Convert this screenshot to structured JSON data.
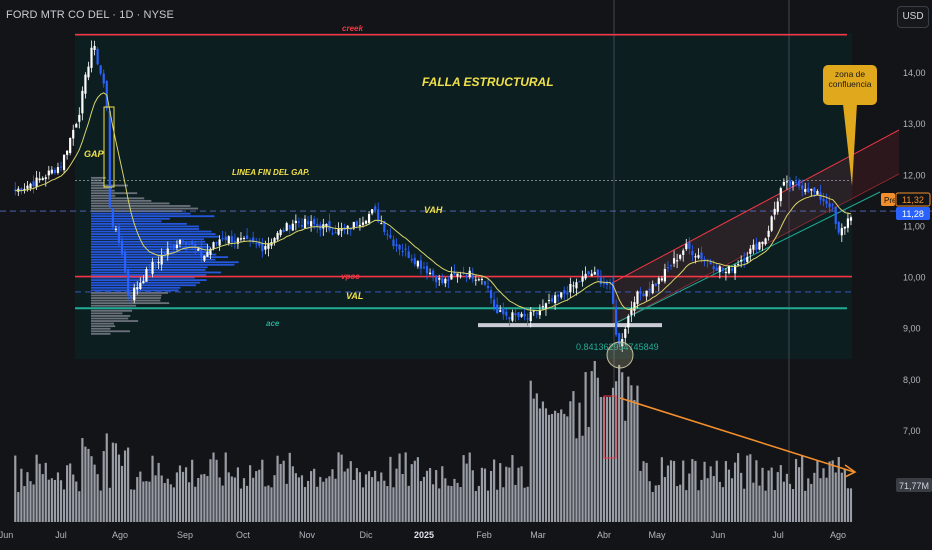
{
  "header": {
    "symbol_title": "FORD MTR CO DEL · 1D · NYSE",
    "currency_button": "USD"
  },
  "colors": {
    "background": "#121417",
    "box": "#0d1f22",
    "up_candle": "#ffffff",
    "down_candle": "#2962ff",
    "vwap": "#d8d46a",
    "resistance": "#f23645",
    "support": "#22ab94",
    "volume": "#b2b5be",
    "profile": "#2962ff",
    "annotation": "#f0e14a",
    "trend_arrow": "#f28e2c",
    "channel": "#f23645"
  },
  "annotations": {
    "creek": "creek",
    "falla": "FALLA ESTRUCTURAL",
    "gap": "GAP",
    "linea_fin_gap": "LINEA FIN DEL GAP.",
    "vah": "VAH",
    "vpoc": "vpoc",
    "val": "VAL",
    "ace": "ace",
    "fib_ratio": "0.841362954745849",
    "callout_line1": "zona de",
    "callout_line2": "confluencia"
  },
  "price_badges": {
    "pre_label": "Pre",
    "pre_value": "11,32",
    "last_value": "11,28",
    "volume_value": "71,77M"
  },
  "chart_data": {
    "type": "candlestick",
    "title": "FORD MTR CO DEL · 1D · NYSE",
    "x_ticks": [
      "Jun",
      "Jul",
      "Ago",
      "Sep",
      "Oct",
      "Nov",
      "Dic",
      "2025",
      "Feb",
      "Mar",
      "Abr",
      "May",
      "Jun",
      "Jul",
      "Ago"
    ],
    "y_ticks": [
      "14,00",
      "13,00",
      "12,00",
      "11,00",
      "10,00",
      "9,00",
      "8,00",
      "7,00"
    ],
    "ylim": [
      6.5,
      14.8
    ],
    "levels": {
      "creek": 14.75,
      "gap_end": 11.9,
      "vah": 11.3,
      "vpoc": 10.02,
      "val": 9.72,
      "ace": 9.4,
      "support_bar": 9.07
    },
    "price_path": [
      [
        "Jun 3",
        11.7
      ],
      [
        "Jun 17",
        11.9
      ],
      [
        "Jul 1",
        12.2
      ],
      [
        "Jul 10",
        13.2
      ],
      [
        "Jul 17",
        14.6
      ],
      [
        "Jul 24",
        13.6
      ],
      [
        "Jul 26",
        11.2
      ],
      [
        "Aug 2",
        10.5
      ],
      [
        "Aug 5",
        9.6
      ],
      [
        "Aug 15",
        10.2
      ],
      [
        "Aug 30",
        10.8
      ],
      [
        "Sep 10",
        10.4
      ],
      [
        "Sep 20",
        10.8
      ],
      [
        "Oct 10",
        10.6
      ],
      [
        "Oct 25",
        11.1
      ],
      [
        "Nov 8",
        11.0
      ],
      [
        "Nov 20",
        10.9
      ],
      [
        "Dec 5",
        11.3
      ],
      [
        "Dec 15",
        10.7
      ],
      [
        "Dec 31",
        10.2
      ],
      [
        "Jan 10",
        9.9
      ],
      [
        "Jan 20",
        10.1
      ],
      [
        "Jan 31",
        10.0
      ],
      [
        "Feb 8",
        9.3
      ],
      [
        "Feb 25",
        9.2
      ],
      [
        "Mar 10",
        9.6
      ],
      [
        "Mar 25",
        10.1
      ],
      [
        "Apr 5",
        9.8
      ],
      [
        "Apr 9",
        8.6
      ],
      [
        "Apr 18",
        9.6
      ],
      [
        "May 1",
        9.9
      ],
      [
        "May 15",
        10.6
      ],
      [
        "Jun 5",
        10.1
      ],
      [
        "Jun 25",
        10.8
      ],
      [
        "Jul 3",
        11.8
      ],
      [
        "Jul 14",
        11.8
      ],
      [
        "Jul 28",
        11.4
      ],
      [
        "Aug 1",
        10.8
      ],
      [
        "Aug 8",
        11.28
      ]
    ],
    "volume": {
      "unit": "M",
      "last": 71.77,
      "peak_label": "Abr"
    }
  }
}
